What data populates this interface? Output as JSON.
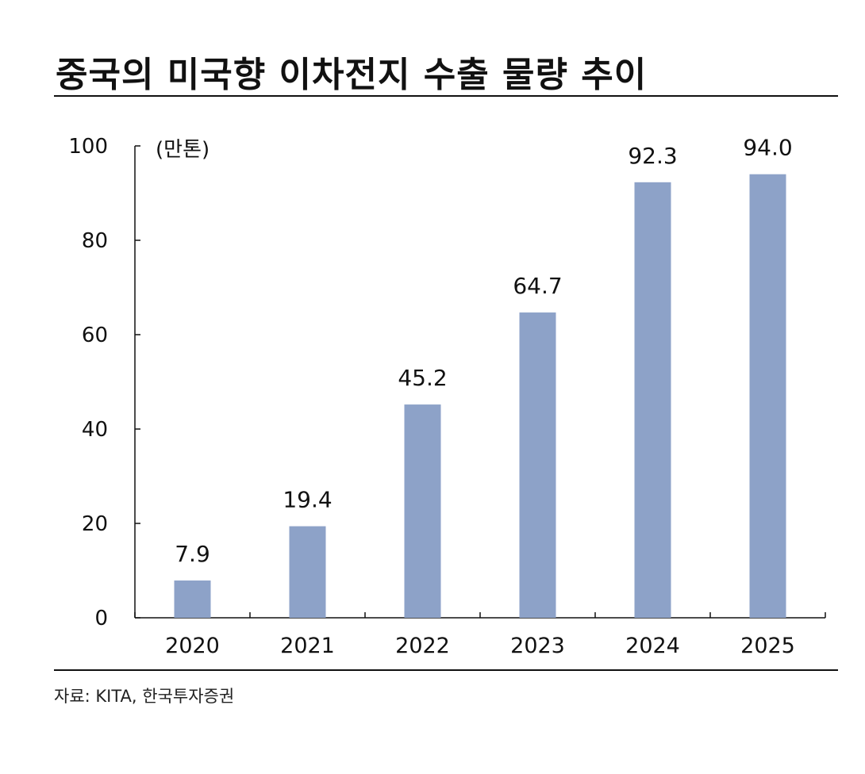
{
  "chart_data": {
    "type": "bar",
    "title": "중국의 미국향 이차전지 수출 물량 추이",
    "unit_label": "(만톤)",
    "categories": [
      "2020",
      "2021",
      "2022",
      "2023",
      "2024",
      "2025"
    ],
    "values": [
      7.9,
      19.4,
      45.2,
      64.7,
      92.3,
      94.0
    ],
    "value_labels": [
      "7.9",
      "19.4",
      "45.2",
      "64.7",
      "92.3",
      "94.0"
    ],
    "ylim": [
      0,
      100
    ],
    "yticks": [
      0,
      20,
      40,
      60,
      80,
      100
    ],
    "ytick_labels": [
      "0",
      "20",
      "40",
      "60",
      "80",
      "100"
    ],
    "bar_color": "#8da2c8",
    "grid": false,
    "legend": "none"
  },
  "source": "자료: KITA, 한국투자증권"
}
